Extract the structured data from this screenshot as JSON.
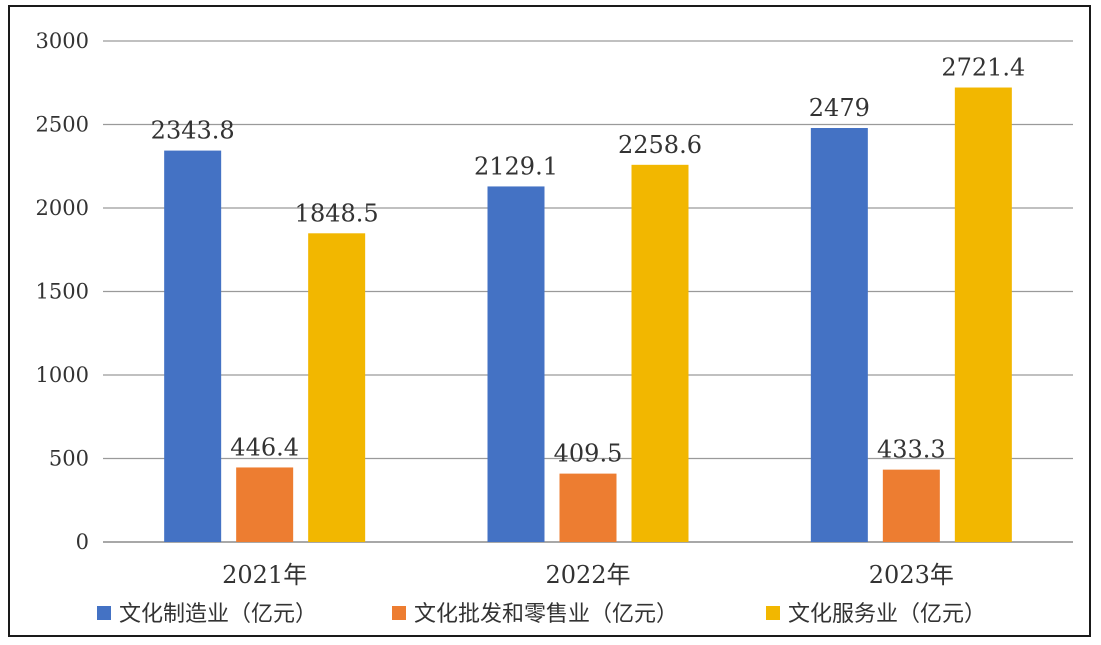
{
  "chart_data": {
    "type": "bar",
    "categories": [
      "2021年",
      "2022年",
      "2023年"
    ],
    "series": [
      {
        "name": "文化制造业（亿元）",
        "color": "#4472C4",
        "values": [
          2343.8,
          2129.1,
          2479
        ]
      },
      {
        "name": "文化批发和零售业（亿元）",
        "color": "#ED7D31",
        "values": [
          446.4,
          409.5,
          433.3
        ]
      },
      {
        "name": "文化服务业（亿元）",
        "color": "#F2B700",
        "values": [
          1848.5,
          2258.6,
          2721.4
        ]
      }
    ],
    "data_labels": [
      [
        "2343.8",
        "2129.1",
        "2479"
      ],
      [
        "446.4",
        "409.5",
        "433.3"
      ],
      [
        "1848.5",
        "2258.6",
        "2721.4"
      ]
    ],
    "yticks": [
      "0",
      "500",
      "1000",
      "1500",
      "2000",
      "2500",
      "3000"
    ],
    "ylim": [
      0,
      3000
    ],
    "grid": true,
    "legend_position": "bottom",
    "title": "",
    "xlabel": "",
    "ylabel": ""
  }
}
